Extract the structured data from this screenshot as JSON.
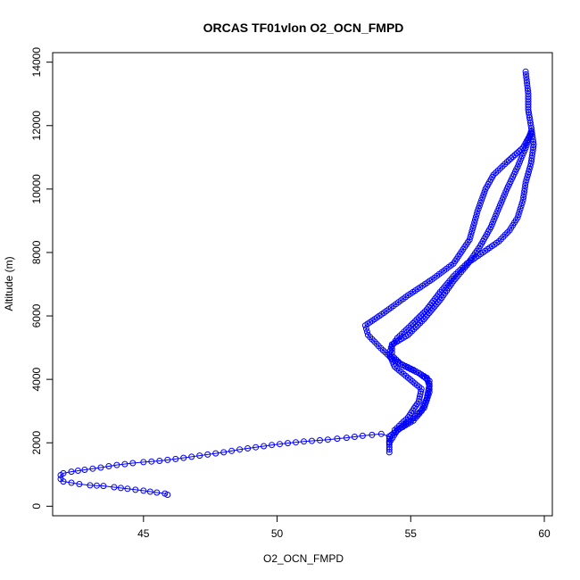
{
  "chart_data": {
    "type": "scatter",
    "title": "ORCAS TF01vlon O2_OCN_FMPD",
    "xlabel": "O2_OCN_FMPD",
    "ylabel": "Altitude (m)",
    "xlim": [
      41.6,
      60.3
    ],
    "ylim": [
      -300,
      14300
    ],
    "xticks": [
      45,
      50,
      55,
      60
    ],
    "yticks": [
      0,
      2000,
      4000,
      6000,
      8000,
      10000,
      12000,
      14000
    ],
    "grid": false,
    "marker": "open-circle",
    "colors": {
      "series": "#0000ff",
      "axis": "#000000"
    },
    "series": [
      {
        "path": [
          [
            54.2,
            1700
          ],
          [
            54.2,
            2200
          ],
          [
            54.6,
            2450
          ],
          [
            55.1,
            2700
          ],
          [
            55.4,
            3000
          ],
          [
            55.6,
            3400
          ],
          [
            55.7,
            3800
          ],
          [
            55.6,
            4050
          ],
          [
            55.1,
            4300
          ],
          [
            54.6,
            4500
          ],
          [
            54.3,
            4750
          ],
          [
            54.3,
            5050
          ],
          [
            54.5,
            5300
          ],
          [
            55.0,
            5700
          ],
          [
            55.6,
            6200
          ],
          [
            56.1,
            6750
          ],
          [
            56.6,
            7250
          ],
          [
            57.1,
            7650
          ],
          [
            57.7,
            8000
          ],
          [
            58.3,
            8350
          ],
          [
            58.7,
            8700
          ],
          [
            59.0,
            9100
          ],
          [
            59.2,
            9650
          ],
          [
            59.3,
            10200
          ],
          [
            59.5,
            10800
          ],
          [
            59.6,
            11400
          ],
          [
            59.5,
            12000
          ],
          [
            59.4,
            12500
          ],
          [
            59.4,
            13000
          ],
          [
            59.3,
            13700
          ]
        ],
        "path2": [
          [
            54.4,
            2400
          ],
          [
            54.9,
            2800
          ],
          [
            55.3,
            3300
          ],
          [
            55.4,
            3700
          ],
          [
            54.9,
            4050
          ],
          [
            54.4,
            4400
          ],
          [
            54.2,
            4800
          ],
          [
            54.3,
            5100
          ],
          [
            54.9,
            5400
          ],
          [
            55.5,
            5900
          ],
          [
            56.1,
            6500
          ],
          [
            56.6,
            7100
          ],
          [
            57.1,
            7600
          ],
          [
            57.6,
            8200
          ],
          [
            58.0,
            8800
          ],
          [
            58.3,
            9400
          ],
          [
            58.6,
            10000
          ],
          [
            59.0,
            10700
          ],
          [
            59.3,
            11300
          ],
          [
            59.5,
            11800
          ]
        ],
        "path3": [
          [
            54.2,
            2000
          ],
          [
            54.5,
            2400
          ],
          [
            55.0,
            2700
          ],
          [
            55.5,
            3100
          ],
          [
            55.7,
            3600
          ],
          [
            55.7,
            3950
          ],
          [
            55.3,
            4200
          ],
          [
            54.8,
            4400
          ],
          [
            54.3,
            4650
          ],
          [
            53.8,
            5050
          ],
          [
            53.4,
            5400
          ],
          [
            53.3,
            5700
          ],
          [
            54.0,
            6100
          ],
          [
            54.9,
            6650
          ],
          [
            55.8,
            7150
          ],
          [
            56.6,
            7650
          ],
          [
            57.2,
            8400
          ],
          [
            57.5,
            9300
          ],
          [
            57.8,
            10000
          ],
          [
            58.1,
            10450
          ],
          [
            58.6,
            10850
          ],
          [
            59.2,
            11300
          ],
          [
            59.5,
            11750
          ]
        ],
        "ascent": [
          [
            54.2,
            2200
          ],
          [
            53.9,
            2280
          ],
          [
            53.2,
            2220
          ],
          [
            52.6,
            2160
          ],
          [
            51.9,
            2100
          ],
          [
            51.0,
            2040
          ],
          [
            50.4,
            1990
          ],
          [
            49.8,
            1930
          ],
          [
            49.2,
            1860
          ],
          [
            48.6,
            1790
          ],
          [
            48.0,
            1700
          ],
          [
            47.4,
            1630
          ],
          [
            46.8,
            1560
          ],
          [
            46.2,
            1490
          ],
          [
            45.6,
            1430
          ],
          [
            45.0,
            1390
          ],
          [
            44.6,
            1360
          ],
          [
            44.0,
            1300
          ],
          [
            43.4,
            1220
          ],
          [
            42.8,
            1150
          ],
          [
            42.3,
            1090
          ],
          [
            42.0,
            1040
          ],
          [
            41.9,
            980
          ],
          [
            41.9,
            860
          ],
          [
            42.0,
            780
          ],
          [
            42.3,
            740
          ],
          [
            42.6,
            700
          ],
          [
            43.0,
            660
          ],
          [
            43.5,
            640
          ],
          [
            43.9,
            600
          ],
          [
            44.4,
            550
          ],
          [
            45.0,
            490
          ],
          [
            45.5,
            430
          ],
          [
            45.8,
            400
          ],
          [
            45.9,
            360
          ]
        ]
      }
    ]
  }
}
